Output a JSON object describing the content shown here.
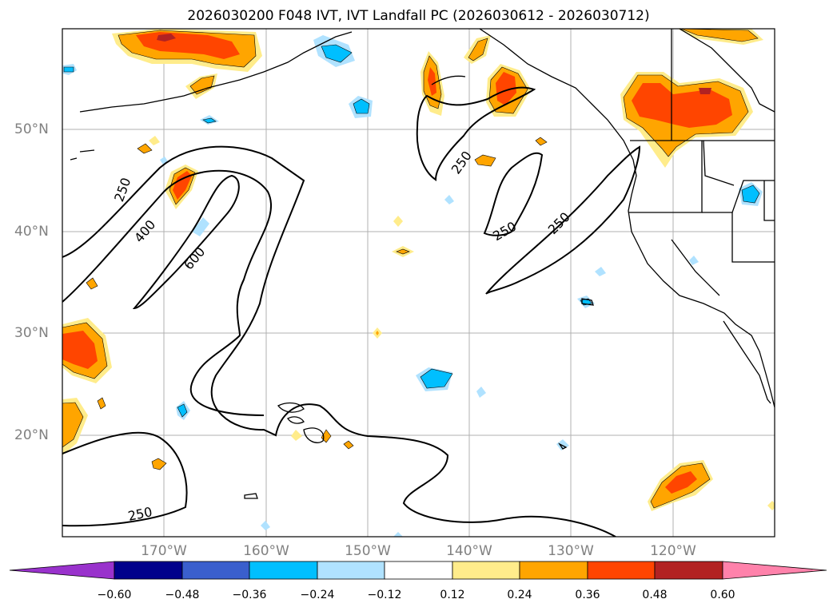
{
  "title": "2026030200 F048 IVT, IVT Landfall PC (2026030612 - 2026030712)",
  "lat_labels": [
    "50°N",
    "40°N",
    "30°N",
    "20°N"
  ],
  "lon_labels": [
    "170°W",
    "160°W",
    "150°W",
    "140°W",
    "130°W",
    "120°W"
  ],
  "contour_labels": [
    "250",
    "400",
    "600",
    "250",
    "250",
    "250",
    "250"
  ],
  "colorbar": {
    "tick_labels": [
      "−0.60",
      "−0.48",
      "−0.36",
      "−0.24",
      "−0.12",
      "0.12",
      "0.24",
      "0.36",
      "0.48",
      "0.60"
    ],
    "colors": [
      "#9932cc",
      "#00008b",
      "#3a5fcd",
      "#00bfff",
      "#b0e2ff",
      "#ffffff",
      "#ffec8b",
      "#ffa500",
      "#ff4500",
      "#b22222",
      "#ff82ab"
    ]
  },
  "colors": {
    "pos_012": "#ffec8b",
    "pos_024": "#ffa500",
    "pos_036": "#ff4500",
    "pos_048": "#b22222",
    "neg_012": "#b0e2ff",
    "neg_024": "#00bfff",
    "grid": "#b0b0b0"
  }
}
